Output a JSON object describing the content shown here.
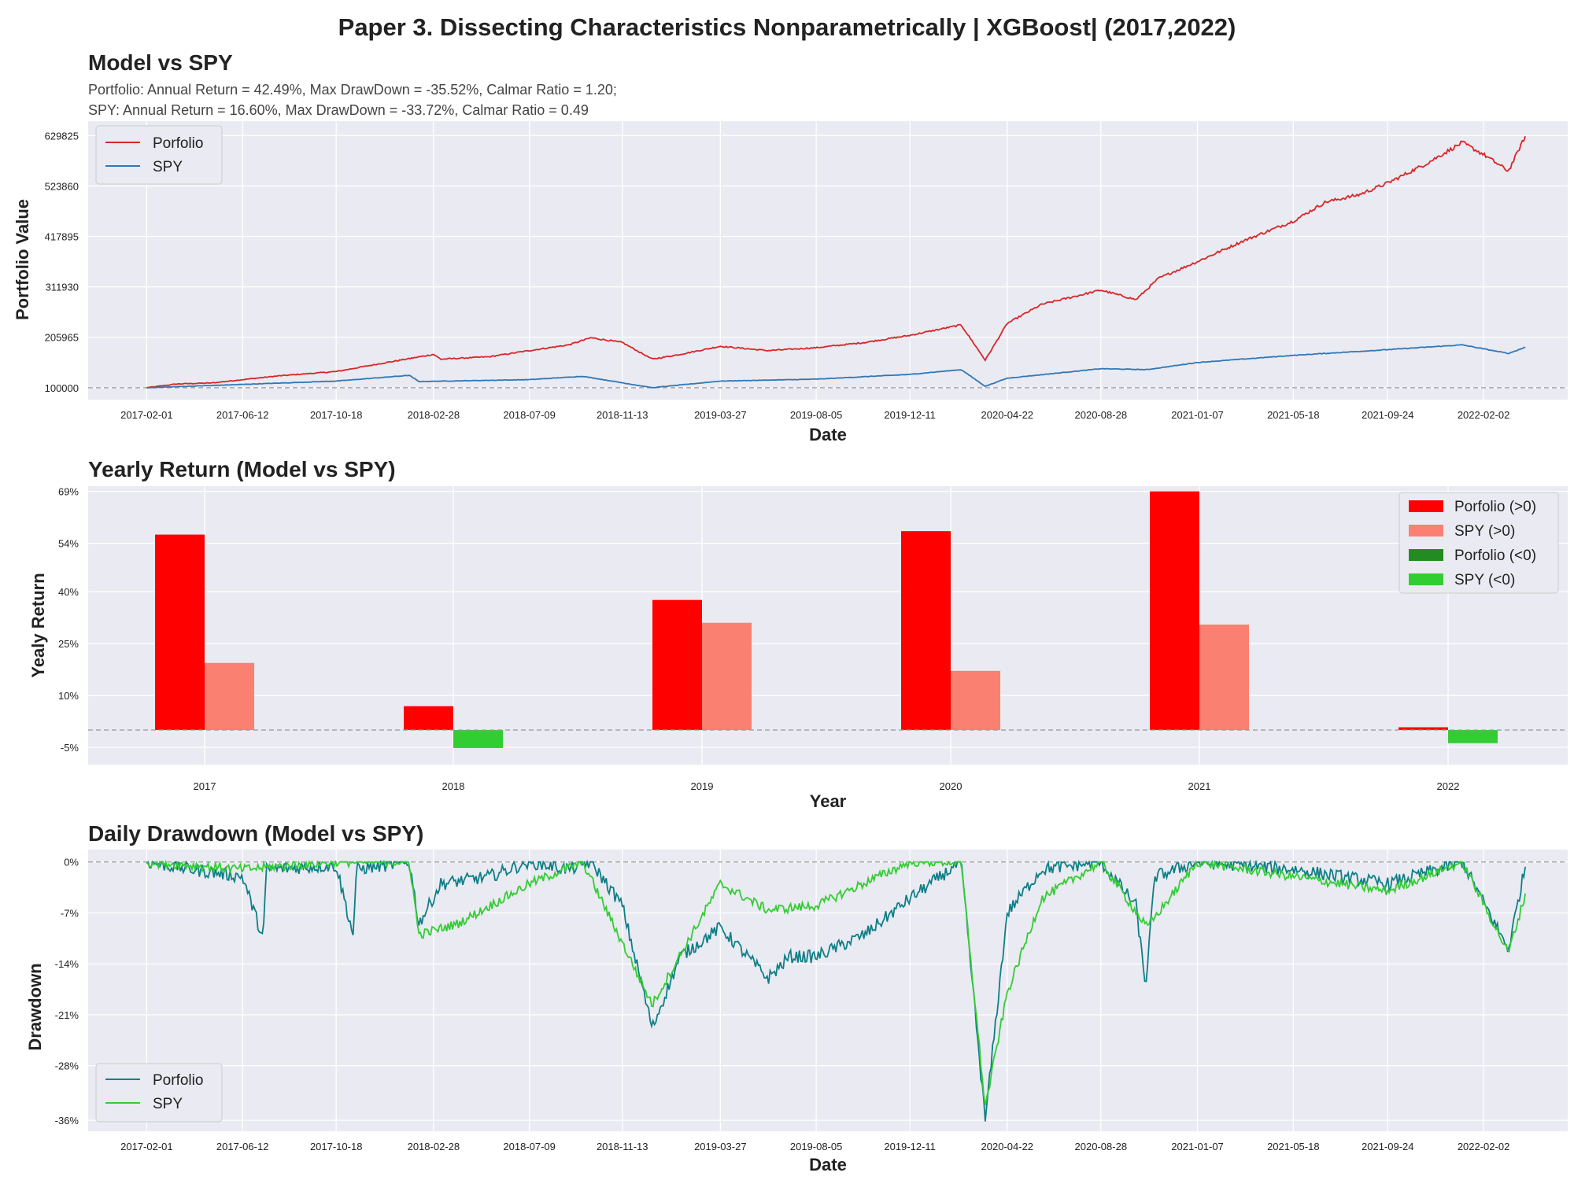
{
  "title": "Paper 3. Dissecting Characteristics Nonparametrically | XGBoost| (2017,2022)",
  "colors": {
    "portfolio_line": "#d62728",
    "spy_line": "#2f78b7",
    "bar_pos_portfolio": "#ff0000",
    "bar_pos_spy": "#fa8072",
    "bar_neg_portfolio": "#228b22",
    "bar_neg_spy": "#32cd32",
    "dd_portfolio": "#0e7f86",
    "dd_spy": "#32cd32",
    "axes_bg": "#eaeaf2",
    "grid": "#ffffff"
  },
  "chart_data": [
    {
      "type": "line",
      "title": "Model vs SPY",
      "subtitle_lines": [
        "Portfolio: Annual Return = 42.49%, Max DrawDown = -35.52%, Calmar Ratio = 1.20;",
        "SPY: Annual Return = 16.60%, Max DrawDown = -33.72%, Calmar Ratio = 0.49"
      ],
      "xlabel": "Date",
      "ylabel": "Portfolio Value",
      "x_ticks": [
        "2017-02-01",
        "2017-06-12",
        "2017-10-18",
        "2018-02-28",
        "2018-07-09",
        "2018-11-13",
        "2019-03-27",
        "2019-08-05",
        "2019-12-11",
        "2020-04-22",
        "2020-08-28",
        "2021-01-07",
        "2021-05-18",
        "2021-09-24",
        "2022-02-02"
      ],
      "y_ticks": [
        "100000",
        "205965",
        "311930",
        "417895",
        "523860",
        "629825"
      ],
      "ylim": [
        75000,
        660000
      ],
      "baseline": 100000,
      "legend_position": "upper left",
      "series": [
        {
          "name": "Porfolio",
          "points": [
            [
              "2017-02-01",
              100000
            ],
            [
              "2017-03-15",
              108000
            ],
            [
              "2017-05-01",
              110000
            ],
            [
              "2017-06-12",
              117000
            ],
            [
              "2017-08-01",
              125000
            ],
            [
              "2017-10-18",
              134000
            ],
            [
              "2017-12-15",
              150000
            ],
            [
              "2018-02-28",
              170000
            ],
            [
              "2018-03-10",
              160000
            ],
            [
              "2018-05-15",
              165000
            ],
            [
              "2018-07-09",
              178000
            ],
            [
              "2018-09-01",
              190000
            ],
            [
              "2018-10-01",
              205000
            ],
            [
              "2018-11-13",
              195000
            ],
            [
              "2018-12-24",
              160000
            ],
            [
              "2019-01-31",
              170000
            ],
            [
              "2019-03-27",
              187000
            ],
            [
              "2019-05-31",
              178000
            ],
            [
              "2019-08-05",
              184000
            ],
            [
              "2019-10-10",
              195000
            ],
            [
              "2019-12-11",
              210000
            ],
            [
              "2020-02-19",
              232000
            ],
            [
              "2020-03-23",
              158000
            ],
            [
              "2020-04-22",
              235000
            ],
            [
              "2020-06-08",
              275000
            ],
            [
              "2020-08-28",
              305000
            ],
            [
              "2020-10-15",
              285000
            ],
            [
              "2020-11-15",
              330000
            ],
            [
              "2021-01-07",
              365000
            ],
            [
              "2021-03-10",
              408000
            ],
            [
              "2021-05-18",
              450000
            ],
            [
              "2021-07-01",
              490000
            ],
            [
              "2021-08-15",
              505000
            ],
            [
              "2021-09-24",
              530000
            ],
            [
              "2021-11-15",
              570000
            ],
            [
              "2022-01-04",
              615000
            ],
            [
              "2022-02-02",
              590000
            ],
            [
              "2022-03-08",
              555000
            ],
            [
              "2022-03-31",
              628000
            ]
          ]
        },
        {
          "name": "SPY",
          "points": [
            [
              "2017-02-01",
              100000
            ],
            [
              "2017-06-12",
              107000
            ],
            [
              "2017-10-18",
              114000
            ],
            [
              "2018-01-26",
              126000
            ],
            [
              "2018-02-08",
              113000
            ],
            [
              "2018-07-09",
              117000
            ],
            [
              "2018-09-20",
              124000
            ],
            [
              "2018-12-24",
              100000
            ],
            [
              "2019-03-27",
              114000
            ],
            [
              "2019-08-05",
              118000
            ],
            [
              "2019-12-11",
              128000
            ],
            [
              "2020-02-19",
              138000
            ],
            [
              "2020-03-23",
              103000
            ],
            [
              "2020-04-22",
              120000
            ],
            [
              "2020-08-28",
              140000
            ],
            [
              "2020-10-30",
              138000
            ],
            [
              "2021-01-07",
              153000
            ],
            [
              "2021-05-18",
              168000
            ],
            [
              "2021-09-24",
              180000
            ],
            [
              "2022-01-04",
              190000
            ],
            [
              "2022-03-08",
              172000
            ],
            [
              "2022-03-31",
              185000
            ]
          ]
        }
      ]
    },
    {
      "type": "bar",
      "title": "Yearly Return (Model vs SPY)",
      "xlabel": "Year",
      "ylabel": "Yealy Return",
      "categories": [
        "2017",
        "2018",
        "2019",
        "2020",
        "2021",
        "2022"
      ],
      "y_ticks": [
        "-5%",
        "10%",
        "25%",
        "40%",
        "54%",
        "69%"
      ],
      "y_tick_values": [
        -5,
        10,
        25,
        40,
        54,
        69
      ],
      "ylim": [
        -10,
        70.5
      ],
      "legend_position": "upper right",
      "legend": [
        "Porfolio (>0)",
        "SPY (>0)",
        "Porfolio (<0)",
        "SPY (<0)"
      ],
      "series": [
        {
          "name": "Porfolio",
          "values": [
            56.5,
            6.9,
            37.6,
            57.5,
            69.0,
            0.8
          ]
        },
        {
          "name": "SPY",
          "values": [
            19.4,
            -5.2,
            31.0,
            17.1,
            30.5,
            -3.8
          ]
        }
      ]
    },
    {
      "type": "line",
      "title": "Daily Drawdown (Model vs SPY)",
      "xlabel": "Date",
      "ylabel": "Drawdown",
      "x_ticks": [
        "2017-02-01",
        "2017-06-12",
        "2017-10-18",
        "2018-02-28",
        "2018-07-09",
        "2018-11-13",
        "2019-03-27",
        "2019-08-05",
        "2019-12-11",
        "2020-04-22",
        "2020-08-28",
        "2021-01-07",
        "2021-05-18",
        "2021-09-24",
        "2022-02-02"
      ],
      "y_ticks": [
        "0%",
        "-7%",
        "-14%",
        "-21%",
        "-28%",
        "-36%"
      ],
      "y_tick_values": [
        0,
        -7,
        -14,
        -21,
        -28,
        -35.5
      ],
      "ylim": [
        -37,
        1.7
      ],
      "baseline": 0,
      "legend_position": "lower left",
      "series": [
        {
          "name": "Porfolio",
          "points": [
            [
              "2017-02-01",
              0
            ],
            [
              "2017-04-01",
              -1
            ],
            [
              "2017-06-12",
              -2
            ],
            [
              "2017-07-10",
              -10.5
            ],
            [
              "2017-07-15",
              -1
            ],
            [
              "2017-10-18",
              -0.5
            ],
            [
              "2017-11-10",
              -10
            ],
            [
              "2017-11-15",
              -1
            ],
            [
              "2018-01-26",
              0
            ],
            [
              "2018-02-08",
              -8.5
            ],
            [
              "2018-03-10",
              -3
            ],
            [
              "2018-05-15",
              -2
            ],
            [
              "2018-07-09",
              0
            ],
            [
              "2018-09-01",
              -1
            ],
            [
              "2018-10-01",
              0
            ],
            [
              "2018-11-13",
              -6
            ],
            [
              "2018-12-24",
              -22.8
            ],
            [
              "2019-01-31",
              -13
            ],
            [
              "2019-03-27",
              -9
            ],
            [
              "2019-05-31",
              -16
            ],
            [
              "2019-06-30",
              -13
            ],
            [
              "2019-08-05",
              -13
            ],
            [
              "2019-10-10",
              -10
            ],
            [
              "2019-12-11",
              -5
            ],
            [
              "2020-02-19",
              0
            ],
            [
              "2020-03-23",
              -35.5
            ],
            [
              "2020-04-22",
              -7
            ],
            [
              "2020-06-08",
              -1
            ],
            [
              "2020-08-28",
              0
            ],
            [
              "2020-10-15",
              -6
            ],
            [
              "2020-10-28",
              -17
            ],
            [
              "2020-11-10",
              -2
            ],
            [
              "2021-01-07",
              0
            ],
            [
              "2021-05-18",
              -1
            ],
            [
              "2021-09-24",
              -3
            ],
            [
              "2022-01-04",
              0
            ],
            [
              "2022-03-08",
              -12
            ],
            [
              "2022-03-31",
              -0.5
            ]
          ]
        },
        {
          "name": "SPY",
          "points": [
            [
              "2017-02-01",
              0
            ],
            [
              "2017-06-12",
              -1
            ],
            [
              "2017-10-18",
              0
            ],
            [
              "2018-01-26",
              0
            ],
            [
              "2018-02-08",
              -10
            ],
            [
              "2018-04-02",
              -8.5
            ],
            [
              "2018-07-09",
              -3
            ],
            [
              "2018-09-20",
              0
            ],
            [
              "2018-12-24",
              -19.6
            ],
            [
              "2019-03-27",
              -3
            ],
            [
              "2019-05-31",
              -6.6
            ],
            [
              "2019-08-05",
              -6
            ],
            [
              "2019-12-11",
              0
            ],
            [
              "2020-02-19",
              0
            ],
            [
              "2020-03-23",
              -33.7
            ],
            [
              "2020-04-22",
              -18
            ],
            [
              "2020-06-08",
              -5
            ],
            [
              "2020-08-28",
              0
            ],
            [
              "2020-10-30",
              -9
            ],
            [
              "2021-01-07",
              0
            ],
            [
              "2021-05-18",
              -2
            ],
            [
              "2021-09-24",
              -4
            ],
            [
              "2022-01-04",
              0
            ],
            [
              "2022-03-08",
              -12.5
            ],
            [
              "2022-03-31",
              -4.5
            ]
          ]
        }
      ]
    }
  ]
}
